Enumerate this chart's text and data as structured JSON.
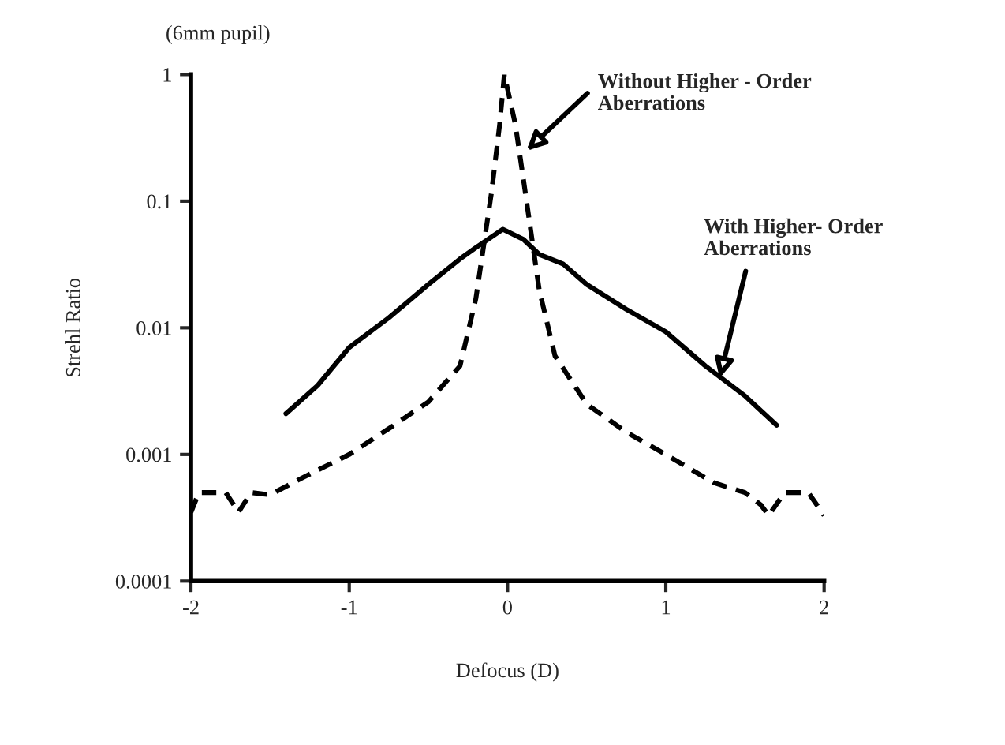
{
  "chart_data": {
    "type": "line",
    "xlabel": "Defocus (D)",
    "ylabel": "Strehl Ratio",
    "log": "y",
    "grid": false,
    "legend": false,
    "xlim": [
      -2,
      2
    ],
    "xticks": [
      -2,
      -1,
      0,
      1,
      2
    ],
    "ylim": [
      0.0001,
      1
    ],
    "yticks": [
      {
        "value": 0.0001,
        "label": "0.0001"
      },
      {
        "value": 0.001,
        "label": "0.001"
      },
      {
        "value": 0.01,
        "label": "0.01"
      },
      {
        "value": 0.1,
        "label": "0.1"
      },
      {
        "value": 1,
        "label": "1"
      }
    ],
    "series": [
      {
        "color": "#000000",
        "line_style": "solid",
        "x": [
          -1.4,
          -1.2,
          -1.0,
          -0.75,
          -0.5,
          -0.3,
          -0.2,
          -0.03,
          0.1,
          0.2,
          0.35,
          0.5,
          0.75,
          1.0,
          1.25,
          1.5,
          1.7
        ],
        "values": [
          0.0021,
          0.0035,
          0.007,
          0.012,
          0.022,
          0.035,
          0.043,
          0.06,
          0.05,
          0.038,
          0.032,
          0.022,
          0.014,
          0.0093,
          0.005,
          0.0029,
          0.0017
        ]
      },
      {
        "color": "#000000",
        "line_style": "dashed",
        "x": [
          -2.0,
          -1.95,
          -1.85,
          -1.78,
          -1.7,
          -1.62,
          -1.5,
          -1.3,
          -1.0,
          -0.75,
          -0.5,
          -0.3,
          -0.2,
          -0.1,
          -0.05,
          -0.02,
          0.05,
          0.1,
          0.2,
          0.3,
          0.5,
          0.75,
          1.0,
          1.3,
          1.5,
          1.6,
          1.65,
          1.75,
          1.9,
          2.0
        ],
        "values": [
          0.00035,
          0.0005,
          0.0005,
          0.0005,
          0.00035,
          0.0005,
          0.00048,
          0.00065,
          0.001,
          0.0016,
          0.0026,
          0.005,
          0.017,
          0.12,
          0.4,
          1,
          0.4,
          0.15,
          0.02,
          0.006,
          0.0025,
          0.0015,
          0.001,
          0.0006,
          0.0005,
          0.0004,
          0.00033,
          0.0005,
          0.0005,
          0.00033
        ]
      }
    ],
    "annotations": [
      "(6mm pupil)",
      {
        "text": "Without Higher - Order\nAberrations",
        "x": 0.12,
        "y": 0.25
      },
      {
        "text": "With Higher- Order\nAberrations",
        "x": 1.34,
        "y": 0.004
      }
    ]
  }
}
